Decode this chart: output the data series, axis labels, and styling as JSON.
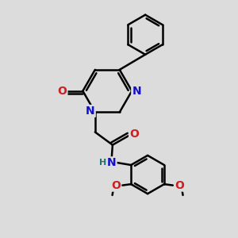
{
  "background_color": "#dcdcdc",
  "bond_color": "#000000",
  "bond_width": 1.8,
  "atom_colors": {
    "N": "#1010cc",
    "O": "#cc2020",
    "H": "#207070",
    "C": "#000000"
  },
  "font_size_atom": 10,
  "font_size_small": 8
}
